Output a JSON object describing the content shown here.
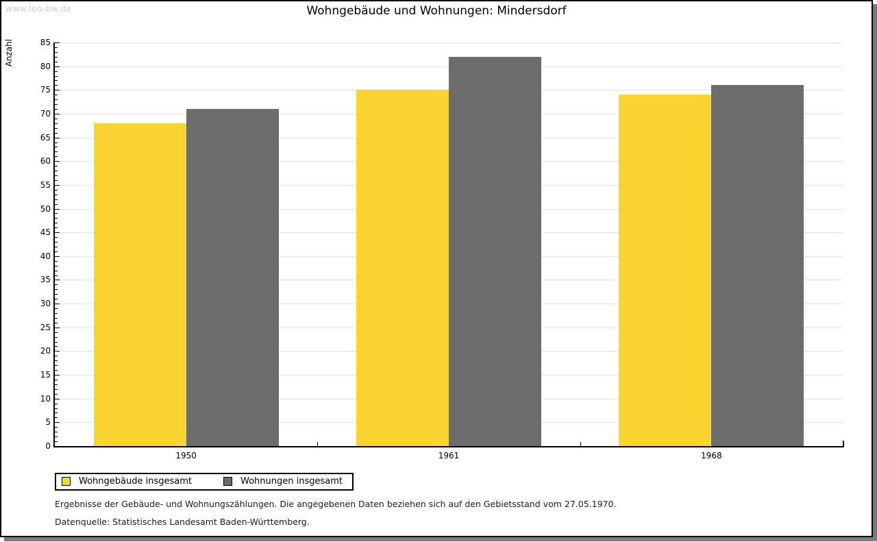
{
  "page": {
    "watermark": "www.leo-bw.de",
    "title": "Wohngebäude und Wohnungen: Mindersdorf"
  },
  "chart_data": {
    "type": "bar",
    "title": "Wohngebäude und Wohnungen: Mindersdorf",
    "xlabel": "",
    "ylabel": "Anzahl",
    "categories": [
      "1950",
      "1961",
      "1968"
    ],
    "series": [
      {
        "name": "Wohngebäude insgesamt",
        "color": "#fcd42f",
        "values": [
          68,
          75,
          74
        ]
      },
      {
        "name": "Wohnungen insgesamt",
        "color": "#6c6c6c",
        "values": [
          71,
          82,
          76
        ]
      }
    ],
    "ylim": [
      0,
      85
    ],
    "yticks": [
      0,
      5,
      10,
      15,
      20,
      25,
      30,
      35,
      40,
      45,
      50,
      55,
      60,
      65,
      70,
      75,
      80,
      85
    ],
    "minor_tick_step": 1,
    "grid": true,
    "gridline_color": "#e0e0e0",
    "legend_position": "bottom-left"
  },
  "footer": {
    "line1": "Ergebnisse der Gebäude- und Wohnungszählungen. Die angegebenen Daten beziehen sich auf den Gebietsstand vom 27.05.1970.",
    "line2": "Datenquelle: Statistisches Landesamt Baden-Württemberg."
  }
}
